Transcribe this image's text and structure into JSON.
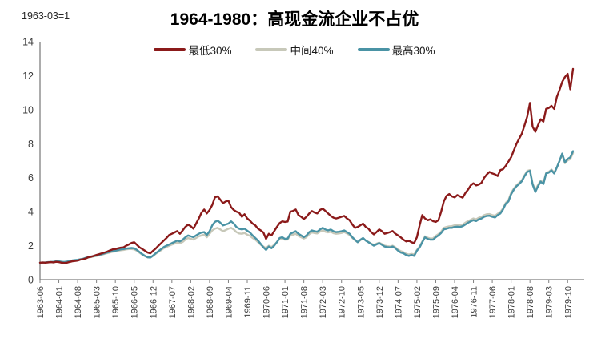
{
  "header": {
    "note": "1963-03=1",
    "title": "1964-1980：高现金流企业不占优"
  },
  "legend": [
    {
      "label": "最低30%",
      "color": "#8B1A1A"
    },
    {
      "label": "中间40%",
      "color": "#C7C8B9"
    },
    {
      "label": "最高30%",
      "color": "#4A93A5"
    }
  ],
  "chart_data": {
    "type": "line",
    "title": "1964-1980：高现金流企业不占优",
    "note": "1963-03=1",
    "xlabel": "",
    "ylabel": "",
    "ylim": [
      0,
      14
    ],
    "y_ticks": [
      0,
      2,
      4,
      6,
      8,
      10,
      12,
      14
    ],
    "grid": false,
    "legend_position": "top",
    "x_unit": "month",
    "x_start": "1963-06",
    "x_end": "1979-12",
    "x_tick_interval_months": 7,
    "x_tick_labels": [
      "1963-06",
      "1964-01",
      "1964-08",
      "1965-03",
      "1965-10",
      "1966-05",
      "1966-12",
      "1967-07",
      "1968-02",
      "1968-09",
      "1969-04",
      "1969-11",
      "1970-06",
      "1971-01",
      "1971-08",
      "1972-03",
      "1972-10",
      "1973-05",
      "1973-12",
      "1974-07",
      "1975-02",
      "1975-09",
      "1976-04",
      "1976-11",
      "1977-06",
      "1978-01",
      "1978-08",
      "1979-03",
      "1979-10"
    ],
    "z_order": [
      1,
      2,
      0
    ],
    "series": [
      {
        "name": "最低30%",
        "color": "#8B1A1A",
        "values": [
          1.0,
          1.01,
          1.0,
          1.02,
          1.03,
          1.02,
          1.05,
          1.03,
          1.0,
          0.98,
          1.0,
          1.04,
          1.08,
          1.1,
          1.12,
          1.18,
          1.2,
          1.25,
          1.32,
          1.35,
          1.4,
          1.45,
          1.5,
          1.55,
          1.6,
          1.65,
          1.72,
          1.78,
          1.8,
          1.85,
          1.88,
          1.9,
          2.0,
          2.07,
          2.16,
          2.2,
          2.05,
          1.9,
          1.8,
          1.7,
          1.6,
          1.55,
          1.7,
          1.83,
          2.0,
          2.15,
          2.3,
          2.45,
          2.63,
          2.7,
          2.78,
          2.86,
          2.7,
          2.9,
          3.1,
          3.24,
          3.15,
          3.0,
          3.3,
          3.6,
          3.94,
          4.13,
          3.9,
          4.1,
          4.4,
          4.84,
          4.9,
          4.7,
          4.5,
          4.6,
          4.65,
          4.27,
          4.1,
          4.0,
          3.94,
          3.7,
          3.85,
          3.6,
          3.47,
          3.3,
          3.19,
          3.0,
          2.9,
          2.77,
          2.4,
          2.7,
          2.6,
          2.85,
          3.1,
          3.33,
          3.43,
          3.4,
          3.42,
          4.0,
          4.05,
          4.13,
          3.8,
          3.7,
          3.57,
          3.7,
          3.9,
          4.04,
          3.95,
          3.9,
          4.1,
          4.18,
          4.05,
          3.9,
          3.75,
          3.65,
          3.6,
          3.65,
          3.7,
          3.75,
          3.6,
          3.5,
          3.25,
          3.05,
          3.1,
          3.2,
          3.3,
          3.1,
          3.0,
          2.8,
          2.67,
          2.8,
          2.96,
          2.85,
          2.7,
          2.75,
          2.8,
          2.86,
          2.7,
          2.6,
          2.49,
          2.35,
          2.25,
          2.3,
          2.2,
          2.15,
          2.5,
          3.2,
          3.8,
          3.6,
          3.5,
          3.55,
          3.44,
          3.4,
          3.5,
          4.0,
          4.6,
          4.93,
          5.04,
          4.9,
          4.84,
          4.98,
          4.9,
          4.82,
          5.1,
          5.3,
          5.55,
          5.67,
          5.55,
          5.6,
          5.7,
          6.0,
          6.2,
          6.34,
          6.25,
          6.2,
          6.1,
          6.45,
          6.5,
          6.7,
          6.95,
          7.2,
          7.6,
          8.0,
          8.3,
          8.6,
          9.1,
          9.6,
          10.4,
          9.0,
          8.7,
          9.1,
          9.44,
          9.3,
          10.05,
          10.1,
          10.23,
          10.05,
          10.75,
          11.17,
          11.64,
          11.92,
          12.11,
          11.2,
          12.4
        ]
      },
      {
        "name": "中间40%",
        "color": "#C7C8B9",
        "values": [
          1.0,
          1.0,
          1.01,
          1.02,
          1.03,
          1.04,
          1.06,
          1.06,
          1.04,
          1.03,
          1.05,
          1.08,
          1.11,
          1.13,
          1.15,
          1.18,
          1.21,
          1.25,
          1.3,
          1.33,
          1.36,
          1.39,
          1.43,
          1.47,
          1.52,
          1.56,
          1.6,
          1.64,
          1.66,
          1.7,
          1.73,
          1.75,
          1.78,
          1.8,
          1.8,
          1.78,
          1.7,
          1.58,
          1.47,
          1.38,
          1.31,
          1.3,
          1.4,
          1.52,
          1.63,
          1.74,
          1.85,
          1.93,
          2.0,
          2.06,
          2.12,
          2.18,
          2.14,
          2.22,
          2.35,
          2.45,
          2.4,
          2.36,
          2.45,
          2.55,
          2.6,
          2.65,
          2.5,
          2.7,
          2.9,
          3.0,
          3.05,
          2.95,
          2.85,
          2.92,
          3.0,
          3.05,
          2.95,
          2.8,
          2.72,
          2.7,
          2.75,
          2.65,
          2.58,
          2.45,
          2.35,
          2.2,
          2.05,
          1.95,
          1.85,
          2.0,
          1.92,
          2.05,
          2.2,
          2.4,
          2.42,
          2.35,
          2.36,
          2.6,
          2.65,
          2.7,
          2.58,
          2.5,
          2.42,
          2.5,
          2.68,
          2.78,
          2.74,
          2.72,
          2.83,
          2.9,
          2.82,
          2.78,
          2.82,
          2.74,
          2.7,
          2.72,
          2.75,
          2.8,
          2.72,
          2.63,
          2.45,
          2.32,
          2.2,
          2.32,
          2.42,
          2.3,
          2.22,
          2.12,
          2.05,
          2.12,
          2.18,
          2.1,
          2.0,
          1.97,
          1.95,
          2.0,
          1.9,
          1.77,
          1.68,
          1.62,
          1.52,
          1.48,
          1.52,
          1.48,
          1.75,
          1.95,
          2.25,
          2.55,
          2.47,
          2.42,
          2.43,
          2.58,
          2.68,
          2.83,
          3.05,
          3.1,
          3.14,
          3.15,
          3.2,
          3.22,
          3.2,
          3.25,
          3.35,
          3.45,
          3.52,
          3.6,
          3.55,
          3.65,
          3.7,
          3.8,
          3.85,
          3.86,
          3.8,
          3.76,
          3.88,
          3.98,
          4.2,
          4.52,
          4.68,
          5.1,
          5.36,
          5.56,
          5.7,
          5.86,
          6.15,
          6.4,
          6.45,
          5.65,
          5.28,
          5.58,
          5.83,
          5.7,
          6.28,
          6.35,
          6.48,
          6.3,
          6.62,
          7.0,
          7.35,
          6.85,
          7.02,
          7.1,
          7.45
        ]
      },
      {
        "name": "最高30%",
        "color": "#4A93A5",
        "values": [
          1.0,
          1.01,
          1.02,
          1.03,
          1.04,
          1.05,
          1.08,
          1.08,
          1.05,
          1.04,
          1.06,
          1.1,
          1.13,
          1.15,
          1.17,
          1.2,
          1.23,
          1.28,
          1.33,
          1.36,
          1.39,
          1.42,
          1.46,
          1.5,
          1.55,
          1.6,
          1.64,
          1.68,
          1.7,
          1.74,
          1.78,
          1.8,
          1.83,
          1.85,
          1.86,
          1.85,
          1.75,
          1.62,
          1.5,
          1.4,
          1.32,
          1.3,
          1.42,
          1.55,
          1.68,
          1.8,
          1.92,
          2.0,
          2.07,
          2.15,
          2.22,
          2.3,
          2.25,
          2.35,
          2.49,
          2.6,
          2.55,
          2.5,
          2.6,
          2.7,
          2.77,
          2.8,
          2.63,
          2.85,
          3.2,
          3.4,
          3.47,
          3.35,
          3.19,
          3.25,
          3.3,
          3.43,
          3.3,
          3.1,
          3.0,
          2.96,
          3.0,
          2.88,
          2.77,
          2.6,
          2.45,
          2.3,
          2.1,
          1.9,
          1.75,
          1.95,
          1.85,
          2.0,
          2.2,
          2.45,
          2.5,
          2.4,
          2.42,
          2.7,
          2.78,
          2.85,
          2.7,
          2.6,
          2.5,
          2.6,
          2.8,
          2.9,
          2.85,
          2.82,
          2.95,
          3.05,
          2.95,
          2.9,
          2.95,
          2.85,
          2.8,
          2.82,
          2.85,
          2.9,
          2.8,
          2.7,
          2.5,
          2.35,
          2.2,
          2.35,
          2.45,
          2.3,
          2.2,
          2.1,
          2.0,
          2.08,
          2.15,
          2.05,
          1.95,
          1.92,
          1.9,
          1.95,
          1.85,
          1.7,
          1.6,
          1.55,
          1.45,
          1.4,
          1.45,
          1.4,
          1.7,
          1.9,
          2.2,
          2.49,
          2.4,
          2.35,
          2.35,
          2.5,
          2.6,
          2.75,
          2.96,
          3.0,
          3.05,
          3.05,
          3.1,
          3.12,
          3.1,
          3.15,
          3.25,
          3.35,
          3.43,
          3.5,
          3.45,
          3.55,
          3.6,
          3.7,
          3.75,
          3.76,
          3.7,
          3.66,
          3.8,
          3.9,
          4.13,
          4.46,
          4.6,
          5.02,
          5.3,
          5.5,
          5.63,
          5.8,
          6.1,
          6.34,
          6.4,
          5.6,
          5.16,
          5.5,
          5.77,
          5.63,
          6.25,
          6.3,
          6.43,
          6.25,
          6.6,
          7.0,
          7.42,
          6.9,
          7.1,
          7.2,
          7.56
        ]
      }
    ]
  }
}
